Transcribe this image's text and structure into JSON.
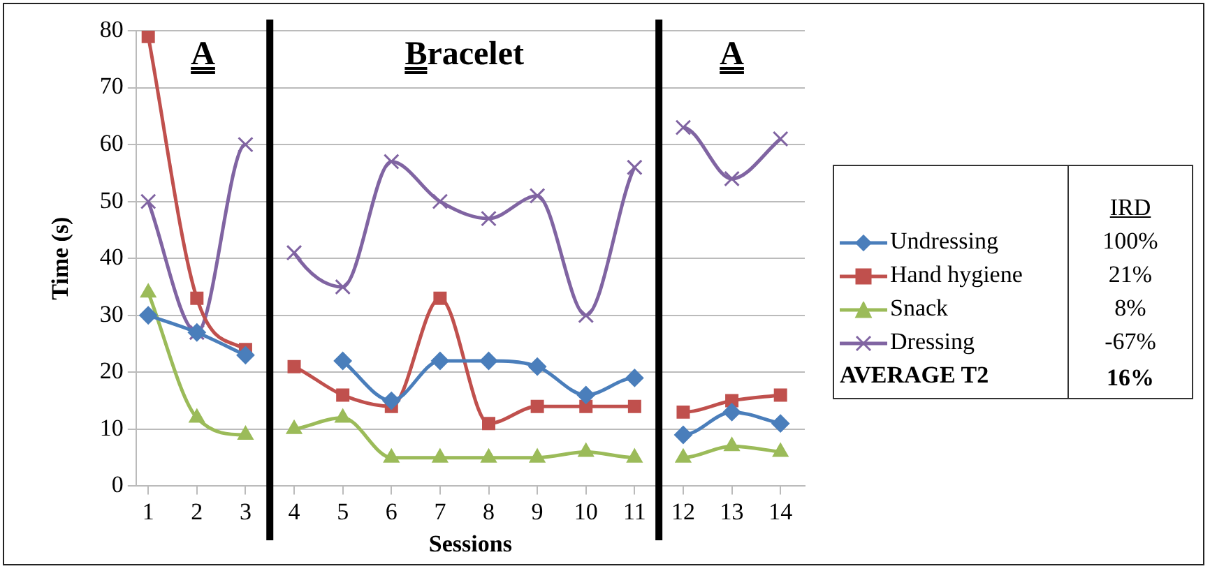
{
  "chart_data": {
    "type": "line",
    "xlabel": "Sessions",
    "ylabel": "Time (s)",
    "legend_title": "IRD",
    "x": [
      1,
      2,
      3,
      4,
      5,
      6,
      7,
      8,
      9,
      10,
      11,
      12,
      13,
      14
    ],
    "xlim": [
      0.75,
      14.5
    ],
    "xticks": [
      1,
      2,
      3,
      4,
      5,
      6,
      7,
      8,
      9,
      10,
      11,
      12,
      13,
      14
    ],
    "ylim": [
      0,
      80
    ],
    "yticks": [
      0,
      10,
      20,
      30,
      40,
      50,
      60,
      70,
      80
    ],
    "grid": "y",
    "legend": "right",
    "series": [
      {
        "name": "Undressing",
        "color": "#4a7ebb",
        "marker": "diamond",
        "values": [
          30,
          27,
          23,
          null,
          22,
          15,
          22,
          22,
          21,
          16,
          19,
          9,
          13,
          11
        ]
      },
      {
        "name": "Hand hygiene",
        "color": "#c0504d",
        "marker": "square",
        "values": [
          79,
          33,
          24,
          21,
          16,
          14,
          33,
          11,
          14,
          14,
          14,
          13,
          15,
          16
        ]
      },
      {
        "name": "Snack",
        "color": "#9bbb59",
        "marker": "triangle",
        "values": [
          34,
          12,
          9,
          10,
          12,
          5,
          5,
          5,
          5,
          6,
          5,
          5,
          7,
          6
        ]
      },
      {
        "name": "Dressing",
        "color": "#8064a2",
        "marker": "cross",
        "values": [
          50,
          27,
          60,
          41,
          35,
          57,
          50,
          47,
          51,
          30,
          56,
          63,
          54,
          61
        ]
      }
    ],
    "ref_lines": [
      {
        "axis": "x",
        "value": 3.5,
        "color": "#000000"
      },
      {
        "axis": "x",
        "value": 11.5,
        "color": "#000000"
      }
    ],
    "annotations": [
      "A",
      "Bracelet",
      "A",
      "100%",
      "21%",
      "8%",
      "-67%",
      "AVERAGE T2",
      "16%"
    ]
  }
}
